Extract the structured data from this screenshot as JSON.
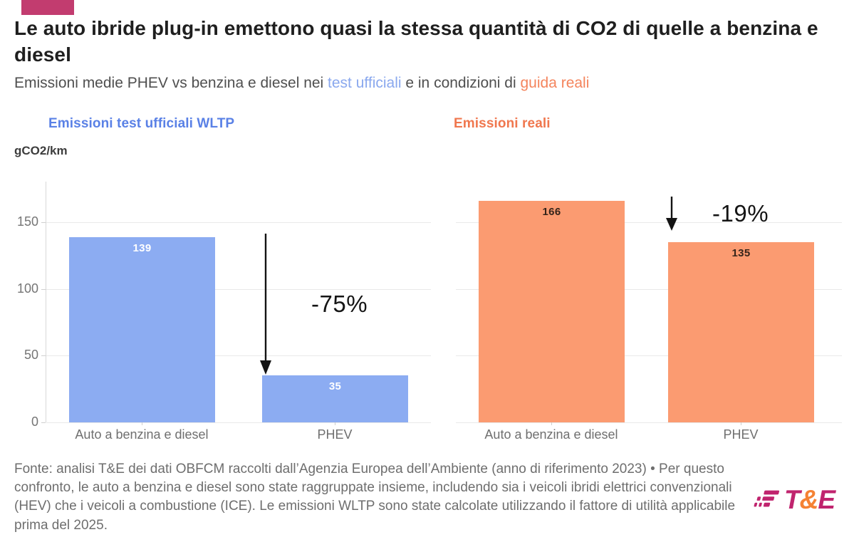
{
  "header": {
    "kicker_color": "#c23c6f",
    "title": "Le auto ibride plug-in emettono quasi la stessa quantità di CO2 di quelle a benzina e diesel",
    "subtitle_part1": "Emissioni medie PHEV vs benzina e diesel nei ",
    "subtitle_official": "test ufficiali",
    "subtitle_part2": " e in condizioni di ",
    "subtitle_real": "guida reali",
    "subtitle_official_color": "#8aa8ee",
    "subtitle_real_color": "#f4845c"
  },
  "chart_data": {
    "type": "bar",
    "unit_label": "gCO2/km",
    "categories": [
      "Auto a benzina e diesel",
      "PHEV"
    ],
    "yticks": [
      0,
      50,
      100,
      150
    ],
    "ylim": [
      0,
      180
    ],
    "grid": "horizontal",
    "legend_position": "none",
    "panels": [
      {
        "title": "Emissioni test ufficiali WLTP",
        "title_color": "#5a81e6",
        "bar_color": "#8cacf2",
        "value_label_color": "#ffffff",
        "change_label": "-75%",
        "bars": [
          {
            "category": "Auto a benzina e diesel",
            "value": 139
          },
          {
            "category": "PHEV",
            "value": 35
          }
        ]
      },
      {
        "title": "Emissioni reali",
        "title_color": "#f0774e",
        "bar_color": "#fb9b71",
        "value_label_color": "#35241a",
        "change_label": "-19%",
        "bars": [
          {
            "category": "Auto a benzina e diesel",
            "value": 166
          },
          {
            "category": "PHEV",
            "value": 135
          }
        ]
      }
    ]
  },
  "footer": {
    "source_text": "Fonte: analisi T&E dei dati OBFCM raccolti dall’Agenzia Europea dell’Ambiente (anno di riferimento 2023) • Per questo confronto, le auto a benzina e diesel sono state raggruppate insieme, includendo sia i veicoli ibridi elettrici convenzionali (HEV) che i veicoli a combustione (ICE). Le emissioni WLTP sono state calcolate utilizzando il fattore di utilità applicabile prima del 2025.",
    "logo": {
      "t": "T",
      "amp": "&",
      "e": "E",
      "magenta": "#c0246e",
      "orange": "#f58233"
    }
  }
}
